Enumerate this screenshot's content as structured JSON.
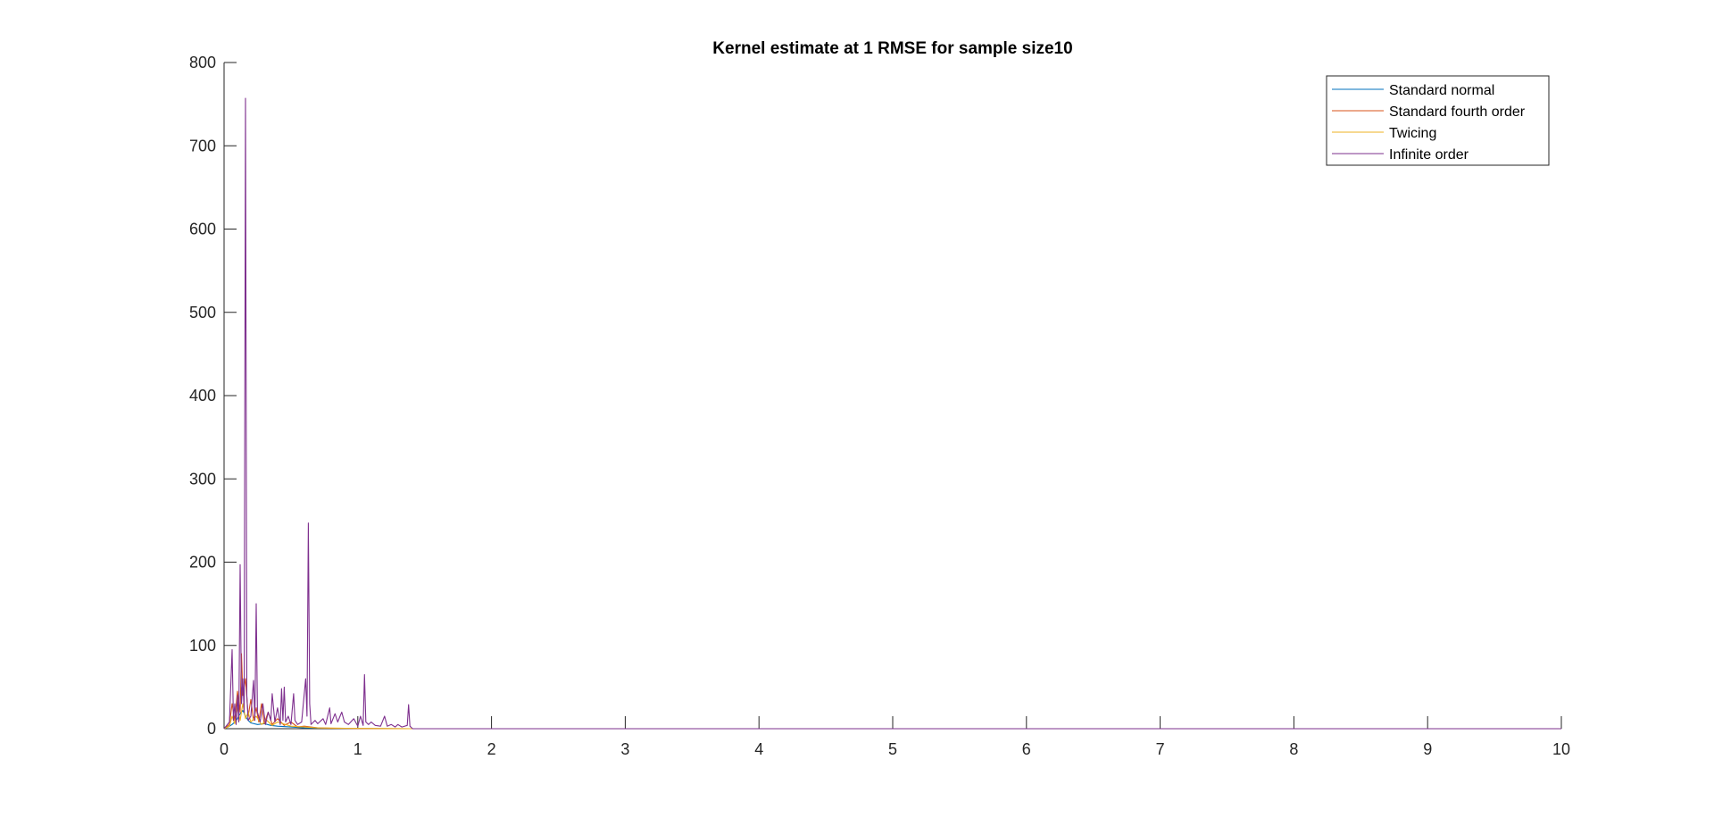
{
  "chart_data": {
    "type": "line",
    "title": "Kernel estimate at 1 RMSE for sample size10",
    "xlabel": "",
    "ylabel": "",
    "xlim": [
      0,
      10
    ],
    "ylim": [
      0,
      800
    ],
    "xticks": [
      0,
      1,
      2,
      3,
      4,
      5,
      6,
      7,
      8,
      9,
      10
    ],
    "yticks": [
      0,
      100,
      200,
      300,
      400,
      500,
      600,
      700,
      800
    ],
    "xtick_labels": [
      "0",
      "1",
      "2",
      "3",
      "4",
      "5",
      "6",
      "7",
      "8",
      "9",
      "10"
    ],
    "ytick_labels": [
      "0",
      "100",
      "200",
      "300",
      "400",
      "500",
      "600",
      "700",
      "800"
    ],
    "grid": false,
    "legend_position": "top-right",
    "legend": [
      "Standard normal",
      "Standard fourth order",
      "Twicing",
      "Infinite order"
    ],
    "series": [
      {
        "name": "Standard normal",
        "color": "#0072BD",
        "points": [
          [
            0.0,
            0
          ],
          [
            0.03,
            2
          ],
          [
            0.06,
            5
          ],
          [
            0.08,
            8
          ],
          [
            0.1,
            12
          ],
          [
            0.12,
            18
          ],
          [
            0.14,
            22
          ],
          [
            0.16,
            15
          ],
          [
            0.18,
            10
          ],
          [
            0.2,
            7
          ],
          [
            0.25,
            5
          ],
          [
            0.3,
            6
          ],
          [
            0.35,
            4
          ],
          [
            0.4,
            3
          ],
          [
            0.5,
            2
          ],
          [
            0.6,
            1
          ],
          [
            0.8,
            0.5
          ],
          [
            1.0,
            0.2
          ],
          [
            1.4,
            0
          ],
          [
            10.0,
            0
          ]
        ]
      },
      {
        "name": "Standard fourth order",
        "color": "#D95319",
        "points": [
          [
            0.0,
            0
          ],
          [
            0.04,
            5
          ],
          [
            0.06,
            30
          ],
          [
            0.08,
            10
          ],
          [
            0.1,
            45
          ],
          [
            0.12,
            20
          ],
          [
            0.13,
            90
          ],
          [
            0.14,
            40
          ],
          [
            0.16,
            60
          ],
          [
            0.18,
            15
          ],
          [
            0.2,
            35
          ],
          [
            0.22,
            10
          ],
          [
            0.24,
            25
          ],
          [
            0.26,
            8
          ],
          [
            0.28,
            30
          ],
          [
            0.3,
            6
          ],
          [
            0.33,
            20
          ],
          [
            0.36,
            5
          ],
          [
            0.4,
            12
          ],
          [
            0.45,
            4
          ],
          [
            0.5,
            8
          ],
          [
            0.55,
            2
          ],
          [
            0.6,
            3
          ],
          [
            0.7,
            1
          ],
          [
            0.8,
            0.5
          ],
          [
            1.0,
            0.2
          ],
          [
            1.4,
            0
          ],
          [
            10.0,
            0
          ]
        ]
      },
      {
        "name": "Twicing",
        "color": "#EDB120",
        "points": [
          [
            0.0,
            0
          ],
          [
            0.04,
            3
          ],
          [
            0.06,
            15
          ],
          [
            0.08,
            6
          ],
          [
            0.1,
            25
          ],
          [
            0.12,
            10
          ],
          [
            0.14,
            30
          ],
          [
            0.16,
            12
          ],
          [
            0.18,
            20
          ],
          [
            0.2,
            8
          ],
          [
            0.24,
            15
          ],
          [
            0.28,
            5
          ],
          [
            0.32,
            10
          ],
          [
            0.36,
            4
          ],
          [
            0.4,
            8
          ],
          [
            0.5,
            3
          ],
          [
            0.6,
            2
          ],
          [
            0.7,
            1
          ],
          [
            0.9,
            0.5
          ],
          [
            1.2,
            0.2
          ],
          [
            1.4,
            0
          ],
          [
            10.0,
            0
          ]
        ]
      },
      {
        "name": "Infinite order",
        "color": "#7E2F8E",
        "points": [
          [
            0.0,
            0
          ],
          [
            0.04,
            8
          ],
          [
            0.06,
            95
          ],
          [
            0.07,
            10
          ],
          [
            0.08,
            30
          ],
          [
            0.09,
            5
          ],
          [
            0.1,
            40
          ],
          [
            0.11,
            8
          ],
          [
            0.12,
            197
          ],
          [
            0.13,
            30
          ],
          [
            0.14,
            60
          ],
          [
            0.15,
            20
          ],
          [
            0.16,
            757
          ],
          [
            0.17,
            40
          ],
          [
            0.18,
            10
          ],
          [
            0.2,
            15
          ],
          [
            0.22,
            58
          ],
          [
            0.23,
            10
          ],
          [
            0.24,
            150
          ],
          [
            0.25,
            20
          ],
          [
            0.27,
            8
          ],
          [
            0.29,
            30
          ],
          [
            0.31,
            5
          ],
          [
            0.33,
            20
          ],
          [
            0.35,
            10
          ],
          [
            0.36,
            42
          ],
          [
            0.38,
            8
          ],
          [
            0.4,
            25
          ],
          [
            0.42,
            5
          ],
          [
            0.43,
            48
          ],
          [
            0.44,
            10
          ],
          [
            0.45,
            50
          ],
          [
            0.46,
            8
          ],
          [
            0.48,
            15
          ],
          [
            0.5,
            5
          ],
          [
            0.52,
            42
          ],
          [
            0.53,
            10
          ],
          [
            0.55,
            5
          ],
          [
            0.58,
            8
          ],
          [
            0.61,
            60
          ],
          [
            0.62,
            15
          ],
          [
            0.63,
            247
          ],
          [
            0.64,
            30
          ],
          [
            0.65,
            5
          ],
          [
            0.68,
            10
          ],
          [
            0.7,
            6
          ],
          [
            0.74,
            12
          ],
          [
            0.76,
            5
          ],
          [
            0.79,
            25
          ],
          [
            0.8,
            6
          ],
          [
            0.83,
            18
          ],
          [
            0.85,
            8
          ],
          [
            0.88,
            20
          ],
          [
            0.9,
            8
          ],
          [
            0.93,
            5
          ],
          [
            0.97,
            12
          ],
          [
            1.0,
            3
          ],
          [
            1.02,
            15
          ],
          [
            1.04,
            4
          ],
          [
            1.05,
            65
          ],
          [
            1.06,
            8
          ],
          [
            1.08,
            5
          ],
          [
            1.1,
            8
          ],
          [
            1.13,
            4
          ],
          [
            1.17,
            3
          ],
          [
            1.2,
            15
          ],
          [
            1.22,
            3
          ],
          [
            1.25,
            5
          ],
          [
            1.28,
            2
          ],
          [
            1.3,
            5
          ],
          [
            1.33,
            2
          ],
          [
            1.37,
            4
          ],
          [
            1.38,
            29
          ],
          [
            1.39,
            3
          ],
          [
            1.41,
            0
          ],
          [
            10.0,
            0
          ]
        ]
      }
    ]
  }
}
